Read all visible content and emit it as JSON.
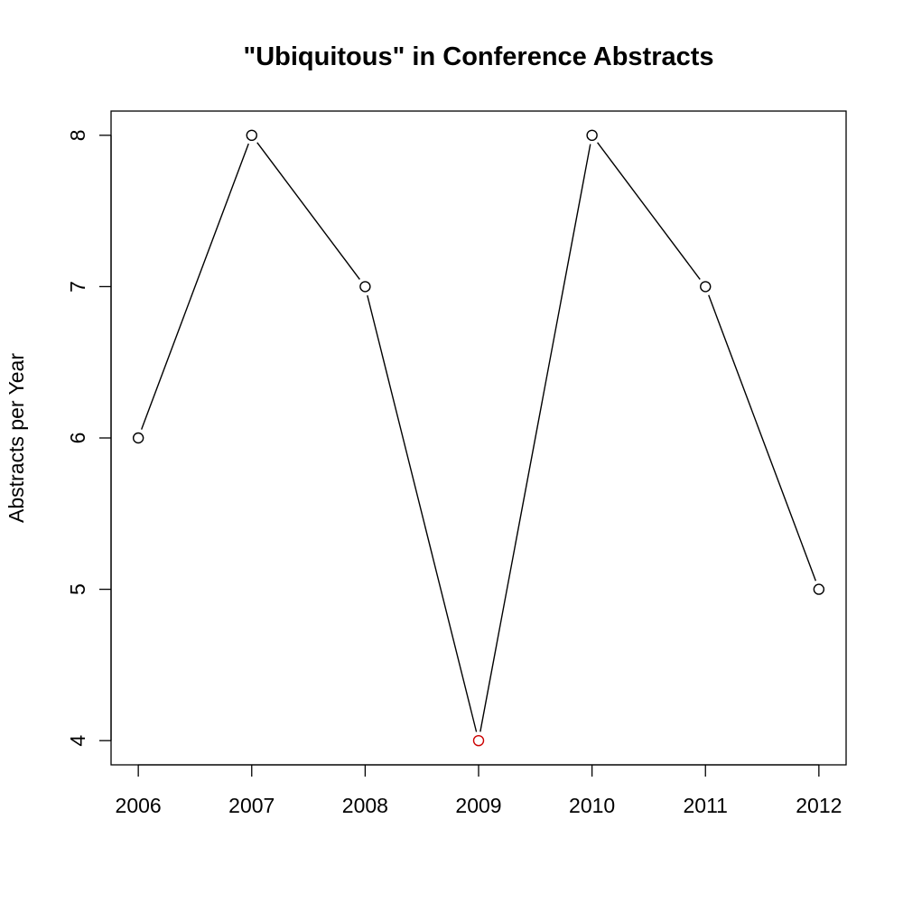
{
  "chart_data": {
    "type": "line",
    "title": "\"Ubiquitous\" in Conference Abstracts",
    "xlabel": "",
    "ylabel": "Abstracts per Year",
    "x": [
      2006,
      2007,
      2008,
      2009,
      2010,
      2011,
      2012
    ],
    "x_tick_labels": [
      "2006",
      "2007",
      "2008",
      "2009",
      "2010",
      "2011",
      "2012"
    ],
    "y_ticks": [
      4,
      5,
      6,
      7,
      8
    ],
    "y_tick_labels": [
      "4",
      "5",
      "6",
      "7",
      "8"
    ],
    "xlim": [
      2005.76,
      2012.24
    ],
    "ylim": [
      3.84,
      8.16
    ],
    "grid": false,
    "legend": "none",
    "series": [
      {
        "values": [
          6,
          8,
          7,
          4,
          8,
          7,
          5
        ],
        "color": "#000000",
        "marker": "open-circle",
        "point_colors": [
          "#000000",
          "#000000",
          "#000000",
          "#cc0000",
          "#000000",
          "#000000",
          "#000000"
        ]
      }
    ]
  }
}
